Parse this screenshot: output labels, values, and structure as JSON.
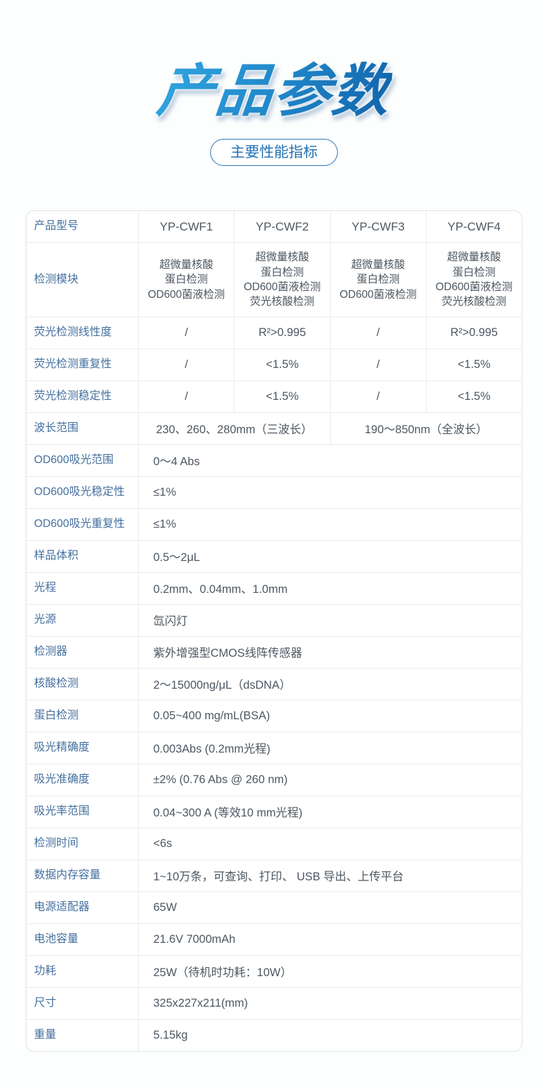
{
  "page_title": "产品参数",
  "page_subtitle": "主要性能指标",
  "colors": {
    "title_gradient_start": "#2fa3de",
    "title_gradient_end": "#1164ab",
    "pill_blue": "#2472b4",
    "label_blue": "#44709f",
    "value_gray": "#4d5761",
    "border_gray": "#e8ecef"
  },
  "table": {
    "header_label": "产品型号",
    "models": [
      "YP-CWF1",
      "YP-CWF2",
      "YP-CWF3",
      "YP-CWF4"
    ],
    "module_row": {
      "label": "检测模块",
      "values": [
        "超微量核酸\n蛋白检测\nOD600菌液检测",
        "超微量核酸\n蛋白检测\nOD600菌液检测\n荧光核酸检测",
        "超微量核酸\n蛋白检测\nOD600菌液检测",
        "超微量核酸\n蛋白检测\nOD600菌液检测\n荧光核酸检测"
      ]
    },
    "quad_rows": [
      {
        "label": "荧光检测线性度",
        "values": [
          "/",
          "R²>0.995",
          "/",
          "R²>0.995"
        ]
      },
      {
        "label": "荧光检测重复性",
        "values": [
          "/",
          "<1.5%",
          "/",
          "<1.5%"
        ]
      },
      {
        "label": "荧光检测稳定性",
        "values": [
          "/",
          "<1.5%",
          "/",
          "<1.5%"
        ]
      }
    ],
    "split_row": {
      "label": "波长范围",
      "left": "230、260、280mm（三波长）",
      "right": "190～850nm（全波长）"
    },
    "rows": [
      {
        "label": "OD600吸光范围",
        "value": "0～4 Abs"
      },
      {
        "label": "OD600吸光稳定性",
        "value": "≤1%"
      },
      {
        "label": "OD600吸光重复性",
        "value": "≤1%"
      },
      {
        "label": "样品体积",
        "value": "0.5～2μL"
      },
      {
        "label": "光程",
        "value": "0.2mm、0.04mm、1.0mm"
      },
      {
        "label": "光源",
        "value": "氙闪灯"
      },
      {
        "label": "检测器",
        "value": "紫外增强型CMOS线阵传感器"
      },
      {
        "label": "核酸检测",
        "value": "2～15000ng/μL（dsDNA）"
      },
      {
        "label": "蛋白检测",
        "value": "0.05~400 mg/mL(BSA)"
      },
      {
        "label": "吸光精确度",
        "value": "0.003Abs (0.2mm光程)"
      },
      {
        "label": "吸光准确度",
        "value": "±2% (0.76 Abs @ 260 nm)"
      },
      {
        "label": "吸光率范围",
        "value": "0.04~300 A (等效10 mm光程)"
      },
      {
        "label": "检测时间",
        "value": "<6s"
      },
      {
        "label": "数据内存容量",
        "value": "1~10万条，可查询、打印、 USB 导出、上传平台"
      },
      {
        "label": "电源适配器",
        "value": "65W"
      },
      {
        "label": "电池容量",
        "value": "21.6V 7000mAh"
      },
      {
        "label": "功耗",
        "value": "25W（待机时功耗：10W）"
      },
      {
        "label": "尺寸",
        "value": "325x227x211(mm)"
      },
      {
        "label": "重量",
        "value": "5.15kg"
      }
    ]
  }
}
